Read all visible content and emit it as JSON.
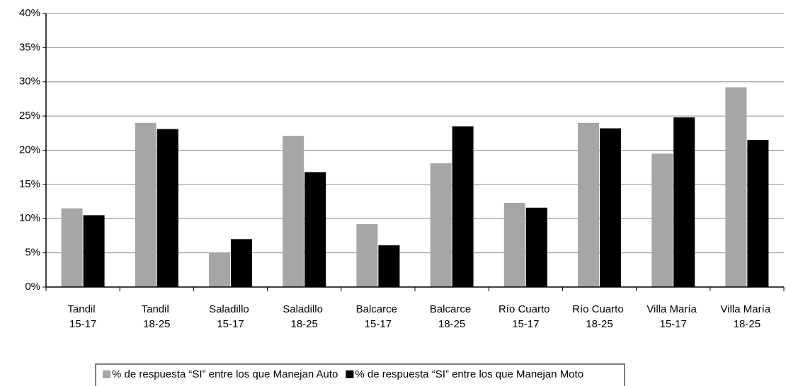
{
  "chart_data": {
    "type": "bar",
    "categories": [
      "Tandil 15-17",
      "Tandil 18-25",
      "Saladillo 15-17",
      "Saladillo 18-25",
      "Balcarce 15-17",
      "Balcarce 18-25",
      "Río Cuarto 15-17",
      "Río Cuarto 18-25",
      "Villa María 15-17",
      "Villa María 18-25"
    ],
    "series": [
      {
        "name": "% de respuesta “SI” entre los que Manejan Auto",
        "color": "#a6a6a6",
        "values": [
          11.5,
          24,
          5,
          22.1,
          9.2,
          18.1,
          12.3,
          24,
          19.5,
          29.2
        ]
      },
      {
        "name": "% de respuesta “SI” entre los que Manejan Moto",
        "color": "#000000",
        "values": [
          10.5,
          23.1,
          7,
          16.8,
          6.1,
          23.5,
          11.6,
          23.2,
          24.8,
          21.5
        ]
      }
    ],
    "ylim": [
      0,
      40
    ],
    "yticks": [
      {
        "value": 0,
        "label": "0%"
      },
      {
        "value": 5,
        "label": "5%"
      },
      {
        "value": 10,
        "label": "10%"
      },
      {
        "value": 15,
        "label": "15%"
      },
      {
        "value": 20,
        "label": "20%"
      },
      {
        "value": 25,
        "label": "25%"
      },
      {
        "value": 30,
        "label": "30%"
      },
      {
        "value": 35,
        "label": "35%"
      },
      {
        "value": 40,
        "label": "40%"
      }
    ],
    "grid": true,
    "legend": "bottom"
  }
}
